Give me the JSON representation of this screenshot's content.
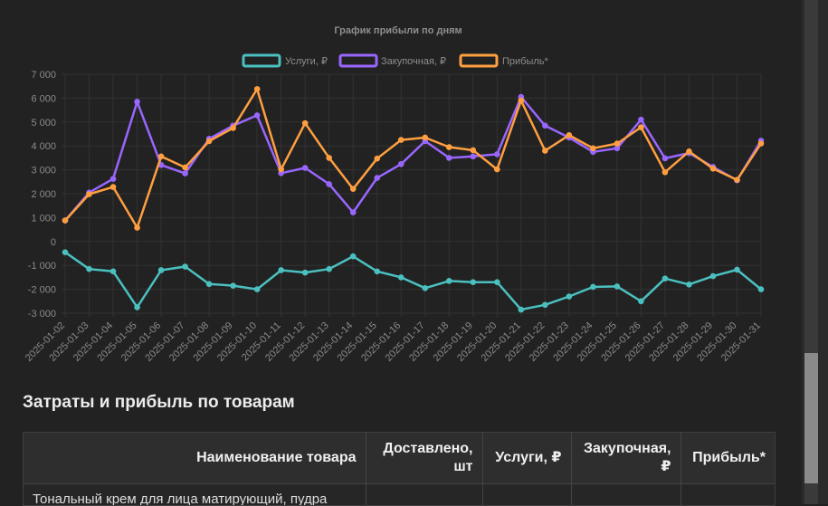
{
  "chart_data": {
    "type": "line",
    "title": "График прибыли по дням",
    "legend_position": "top",
    "grid": true,
    "ylim": [
      -3000,
      7000
    ],
    "yticks": [
      7000,
      6000,
      5000,
      4000,
      3000,
      2000,
      1000,
      0,
      -1000,
      -2000,
      -3000
    ],
    "ytick_labels": [
      "7 000",
      "6 000",
      "5 000",
      "4 000",
      "3 000",
      "2 000",
      "1 000",
      "0",
      "-1 000",
      "-2 000",
      "-3 000"
    ],
    "x": [
      "2025-01-02",
      "2025-01-03",
      "2025-01-04",
      "2025-01-05",
      "2025-01-06",
      "2025-01-07",
      "2025-01-08",
      "2025-01-09",
      "2025-01-10",
      "2025-01-11",
      "2025-01-12",
      "2025-01-13",
      "2025-01-14",
      "2025-01-15",
      "2025-01-16",
      "2025-01-17",
      "2025-01-18",
      "2025-01-19",
      "2025-01-20",
      "2025-01-21",
      "2025-01-22",
      "2025-01-23",
      "2025-01-24",
      "2025-01-25",
      "2025-01-26",
      "2025-01-27",
      "2025-01-28",
      "2025-01-29",
      "2025-01-30",
      "2025-01-31"
    ],
    "series": [
      {
        "name": "Услуги, ₽",
        "color": "#4bc0c0",
        "values": [
          -450,
          -1150,
          -1250,
          -2750,
          -1200,
          -1050,
          -1780,
          -1850,
          -2000,
          -1200,
          -1300,
          -1150,
          -620,
          -1250,
          -1500,
          -1950,
          -1650,
          -1700,
          -1700,
          -2850,
          -2650,
          -2300,
          -1900,
          -1880,
          -2500,
          -1550,
          -1800,
          -1450,
          -1180,
          -2000
        ]
      },
      {
        "name": "Закупочная, ₽",
        "color": "#9966ff",
        "values": [
          880,
          2050,
          2620,
          5850,
          3200,
          2850,
          4300,
          4850,
          5280,
          2860,
          3080,
          2400,
          1220,
          2660,
          3240,
          4200,
          3500,
          3560,
          3650,
          6050,
          4850,
          4350,
          3750,
          3900,
          5100,
          3480,
          3700,
          3120,
          2560,
          4220
        ]
      },
      {
        "name": "Прибыль*",
        "color": "#ff9f40",
        "values": [
          880,
          1980,
          2280,
          580,
          3560,
          3100,
          4200,
          4750,
          6380,
          3020,
          4950,
          3500,
          2200,
          3470,
          4250,
          4350,
          3950,
          3820,
          3020,
          5900,
          3800,
          4450,
          3900,
          4100,
          4780,
          2900,
          3770,
          3050,
          2580,
          4100
        ]
      }
    ]
  },
  "section": {
    "title": "Затраты и прибыль по товарам"
  },
  "table": {
    "headers": [
      "Наименование товара",
      "Доставлено, шт",
      "Услуги, ₽",
      "Закупочная, ₽",
      "Прибыль*"
    ],
    "rows": [
      [
        "Тональный крем для лица матирующий, пудра",
        "",
        "",
        "",
        ""
      ]
    ]
  }
}
